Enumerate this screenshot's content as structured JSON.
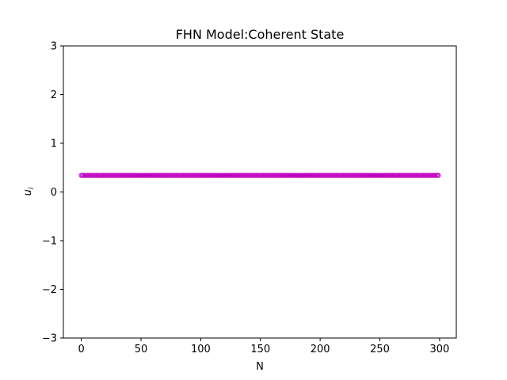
{
  "chart_data": {
    "type": "scatter",
    "title": "FHN Model:Coherent State",
    "xlabel": "N",
    "ylabel": "u",
    "ylabel_subscript": "i",
    "xlim": [
      -15,
      314
    ],
    "ylim": [
      -3,
      3
    ],
    "xticks": [
      0,
      50,
      100,
      150,
      200,
      250,
      300
    ],
    "yticks": [
      -3,
      -2,
      -1,
      0,
      1,
      2,
      3
    ],
    "ytick_labels": [
      "−3",
      "−2",
      "−1",
      "0",
      "1",
      "2",
      "3"
    ],
    "grid": false,
    "legend": "none",
    "series": [
      {
        "x_start": 0,
        "x_end": 299,
        "x_step": 1,
        "y_constant": 0.34,
        "marker": "circle-hollow",
        "color": "#bf00bf"
      }
    ]
  }
}
